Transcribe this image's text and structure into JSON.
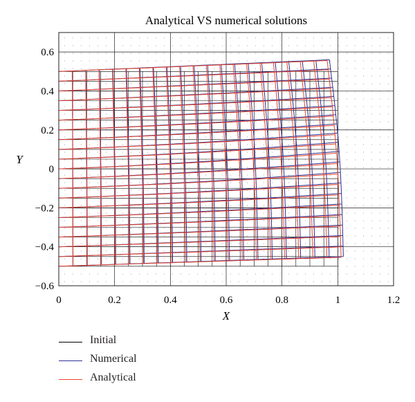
{
  "chart_data": {
    "type": "line",
    "title": "Analytical VS numerical solutions",
    "xlabel": "X",
    "ylabel": "Y",
    "xlim": [
      0,
      1.2
    ],
    "ylim": [
      -0.6,
      0.7
    ],
    "xticks": [
      "0",
      "0.2",
      "0.4",
      "0.6",
      "0.8",
      "1",
      "1.2"
    ],
    "yticks": [
      "−0.6",
      "−0.4",
      "−0.2",
      "0",
      "0.2",
      "0.4",
      "0.6"
    ],
    "xtick_values": [
      0,
      0.2,
      0.4,
      0.6,
      0.8,
      1.0,
      1.2
    ],
    "ytick_values": [
      -0.6,
      -0.4,
      -0.2,
      0,
      0.2,
      0.4,
      0.6
    ],
    "grid": true,
    "legend_position": "below",
    "mesh": {
      "x_extent": [
        0,
        1
      ],
      "y_extent": [
        -0.5,
        0.5
      ],
      "columns": 20,
      "rows": 20
    },
    "deformed_corners": {
      "top_right": [
        0.97,
        0.56
      ],
      "bottom_right": [
        1.02,
        -0.45
      ],
      "bottom_left": [
        0,
        -0.5
      ],
      "top_left": [
        0,
        0.5
      ]
    },
    "series": [
      {
        "name": "Initial",
        "color": "#000000",
        "description_values": "undeformed 20x20 grid on [0,1]x[-0.5,0.5]"
      },
      {
        "name": "Numerical",
        "color": "#2b2f8f"
      },
      {
        "name": "Analytical",
        "color": "#e8422c"
      }
    ]
  }
}
